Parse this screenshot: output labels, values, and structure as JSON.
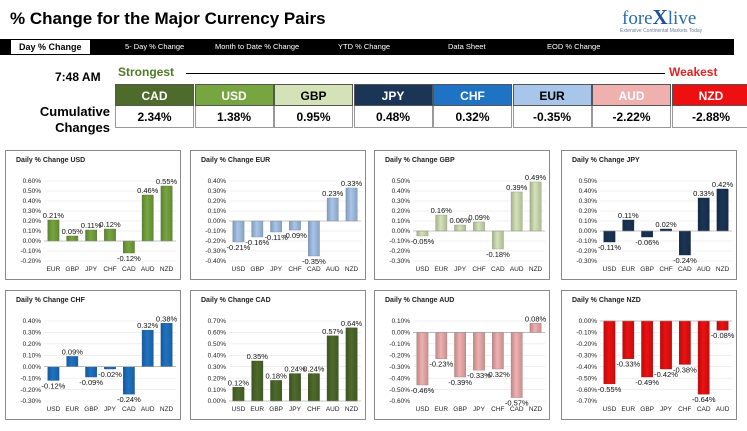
{
  "header": {
    "title": "% Change for the Major Currency Pairs",
    "logo_text_pre": "fore",
    "logo_text_x": "X",
    "logo_text_post": "live",
    "logo_tagline": "Extensive Continental Markets Today"
  },
  "tabs": [
    {
      "label": "Day % Change",
      "active": true
    },
    {
      "label": "5- Day % Change",
      "active": false
    },
    {
      "label": "Month to Date % Change",
      "active": false
    },
    {
      "label": "YTD % Change",
      "active": false
    },
    {
      "label": "Data Sheet",
      "active": false
    },
    {
      "label": "EOD % Change",
      "active": false
    }
  ],
  "summary": {
    "time": "7:48 AM",
    "strongest_label": "Strongest",
    "weakest_label": "Weakest",
    "cumulative_label_line1": "Cumulative",
    "cumulative_label_line2": "Changes",
    "currencies": [
      {
        "code": "CAD",
        "value": "2.34%",
        "color": "#4e6b2b",
        "text": "#ffffff"
      },
      {
        "code": "USD",
        "value": "1.38%",
        "color": "#77a640",
        "text": "#ffffff"
      },
      {
        "code": "GBP",
        "value": "0.95%",
        "color": "#d4e3b7",
        "text": "#000000"
      },
      {
        "code": "JPY",
        "value": "0.48%",
        "color": "#1b3557",
        "text": "#ffffff"
      },
      {
        "code": "CHF",
        "value": "0.32%",
        "color": "#1f73c4",
        "text": "#ffffff"
      },
      {
        "code": "EUR",
        "value": "-0.35%",
        "color": "#a7c6ea",
        "text": "#000000"
      },
      {
        "code": "AUD",
        "value": "-2.22%",
        "color": "#f0b0b0",
        "text": "#ffffff"
      },
      {
        "code": "NZD",
        "value": "-2.88%",
        "color": "#ee1010",
        "text": "#ffffff"
      }
    ]
  },
  "chart_data": [
    {
      "type": "bar",
      "title": "Daily % Change USD",
      "color": "#77a640",
      "categories": [
        "EUR",
        "GBP",
        "JPY",
        "CHF",
        "CAD",
        "AUD",
        "NZD"
      ],
      "values": [
        0.21,
        0.05,
        0.11,
        0.12,
        -0.12,
        0.46,
        0.55
      ],
      "labels": [
        "0.21%",
        "0.05%",
        "0.11%",
        "0.12%",
        "-0.12%",
        "0.46%",
        "0.55%"
      ],
      "ylim": [
        -0.2,
        0.6
      ],
      "ticks": [
        0.6,
        0.5,
        0.4,
        0.3,
        0.2,
        0.1,
        0.0,
        -0.1,
        -0.2
      ],
      "tick_labels": [
        "0.60%",
        "0.50%",
        "0.40%",
        "0.30%",
        "0.20%",
        "0.10%",
        "0.00%",
        "-0.10%",
        "-0.20%"
      ]
    },
    {
      "type": "bar",
      "title": "Daily % Change EUR",
      "color": "#a7c6ea",
      "categories": [
        "USD",
        "GBP",
        "JPY",
        "CHF",
        "CAD",
        "AUD",
        "NZD"
      ],
      "values": [
        -0.21,
        -0.16,
        -0.11,
        -0.09,
        -0.35,
        0.23,
        0.33
      ],
      "labels": [
        "-0.21%",
        "-0.16%",
        "-0.11%",
        "-0.09%",
        "-0.35%",
        "0.23%",
        "0.33%"
      ],
      "ylim": [
        -0.4,
        0.4
      ],
      "ticks": [
        0.4,
        0.3,
        0.2,
        0.1,
        0.0,
        -0.1,
        -0.2,
        -0.3,
        -0.4
      ],
      "tick_labels": [
        "0.40%",
        "0.30%",
        "0.20%",
        "0.10%",
        "0.00%",
        "-0.10%",
        "-0.20%",
        "-0.30%",
        "-0.40%"
      ]
    },
    {
      "type": "bar",
      "title": "Daily % Change GBP",
      "color": "#d4e3b7",
      "categories": [
        "USD",
        "EUR",
        "JPY",
        "CHF",
        "CAD",
        "AUD",
        "NZD"
      ],
      "values": [
        -0.05,
        0.16,
        0.06,
        0.09,
        -0.18,
        0.39,
        0.49
      ],
      "labels": [
        "-0.05%",
        "0.16%",
        "0.06%",
        "0.09%",
        "-0.18%",
        "0.39%",
        "0.49%"
      ],
      "ylim": [
        -0.3,
        0.5
      ],
      "ticks": [
        0.5,
        0.4,
        0.3,
        0.2,
        0.1,
        0.0,
        -0.1,
        -0.2,
        -0.3
      ],
      "tick_labels": [
        "0.50%",
        "0.40%",
        "0.30%",
        "0.20%",
        "0.10%",
        "0.00%",
        "-0.10%",
        "-0.20%",
        "-0.30%"
      ]
    },
    {
      "type": "bar",
      "title": "Daily % Change JPY",
      "color": "#1b3557",
      "categories": [
        "USD",
        "EUR",
        "GBP",
        "CHF",
        "CAD",
        "AUD",
        "NZD"
      ],
      "values": [
        -0.11,
        0.11,
        -0.06,
        0.02,
        -0.24,
        0.33,
        0.42
      ],
      "labels": [
        "-0.11%",
        "0.11%",
        "-0.06%",
        "0.02%",
        "-0.24%",
        "0.33%",
        "0.42%"
      ],
      "ylim": [
        -0.3,
        0.5
      ],
      "ticks": [
        0.5,
        0.4,
        0.3,
        0.2,
        0.1,
        0.0,
        -0.1,
        -0.2,
        -0.3
      ],
      "tick_labels": [
        "0.50%",
        "0.40%",
        "0.30%",
        "0.20%",
        "0.10%",
        "0.00%",
        "-0.10%",
        "-0.20%",
        "-0.30%"
      ]
    },
    {
      "type": "bar",
      "title": "Daily % Change CHF",
      "color": "#1f73c4",
      "categories": [
        "USD",
        "EUR",
        "GBP",
        "JPY",
        "CAD",
        "AUD",
        "NZD"
      ],
      "values": [
        -0.12,
        0.09,
        -0.09,
        -0.02,
        -0.24,
        0.32,
        0.38
      ],
      "labels": [
        "-0.12%",
        "0.09%",
        "-0.09%",
        "-0.02%",
        "-0.24%",
        "0.32%",
        "0.38%"
      ],
      "ylim": [
        -0.3,
        0.4
      ],
      "ticks": [
        0.4,
        0.3,
        0.2,
        0.1,
        0.0,
        -0.1,
        -0.2,
        -0.3
      ],
      "tick_labels": [
        "0.40%",
        "0.30%",
        "0.20%",
        "0.10%",
        "0.00%",
        "-0.10%",
        "-0.20%",
        "-0.30%"
      ]
    },
    {
      "type": "bar",
      "title": "Daily % Change CAD",
      "color": "#4e6b2b",
      "categories": [
        "USD",
        "EUR",
        "GBP",
        "JPY",
        "CHF",
        "AUD",
        "NZD"
      ],
      "values": [
        0.12,
        0.35,
        0.18,
        0.24,
        0.24,
        0.57,
        0.64
      ],
      "labels": [
        "0.12%",
        "0.35%",
        "0.18%",
        "0.24%",
        "0.24%",
        "0.57%",
        "0.64%"
      ],
      "ylim": [
        0.0,
        0.7
      ],
      "ticks": [
        0.7,
        0.6,
        0.5,
        0.4,
        0.3,
        0.2,
        0.1,
        0.0
      ],
      "tick_labels": [
        "0.70%",
        "0.60%",
        "0.50%",
        "0.40%",
        "0.30%",
        "0.20%",
        "0.10%",
        "0.00%"
      ]
    },
    {
      "type": "bar",
      "title": "Daily % Change AUD",
      "color": "#f0b0b0",
      "categories": [
        "USD",
        "EUR",
        "GBP",
        "JPY",
        "CHF",
        "CAD",
        "NZD"
      ],
      "values": [
        -0.46,
        -0.23,
        -0.39,
        -0.33,
        -0.32,
        -0.57,
        0.08
      ],
      "labels": [
        "-0.46%",
        "-0.23%",
        "-0.39%",
        "-0.33%",
        "-0.32%",
        "-0.57%",
        "0.08%"
      ],
      "ylim": [
        -0.6,
        0.1
      ],
      "ticks": [
        0.1,
        0.0,
        -0.1,
        -0.2,
        -0.3,
        -0.4,
        -0.5,
        -0.6
      ],
      "tick_labels": [
        "0.10%",
        "0.00%",
        "-0.10%",
        "-0.20%",
        "-0.30%",
        "-0.40%",
        "-0.50%",
        "-0.60%"
      ]
    },
    {
      "type": "bar",
      "title": "Daily % Change NZD",
      "color": "#ee1010",
      "categories": [
        "USD",
        "EUR",
        "GBP",
        "JPY",
        "CHF",
        "CAD",
        "AUD"
      ],
      "values": [
        -0.55,
        -0.33,
        -0.49,
        -0.42,
        -0.38,
        -0.64,
        -0.08
      ],
      "labels": [
        "-0.55%",
        "-0.33%",
        "-0.49%",
        "-0.42%",
        "-0.38%",
        "-0.64%",
        "-0.08%"
      ],
      "ylim": [
        -0.7,
        0.0
      ],
      "ticks": [
        0.0,
        -0.1,
        -0.2,
        -0.3,
        -0.4,
        -0.5,
        -0.6,
        -0.7
      ],
      "tick_labels": [
        "0.00%",
        "-0.10%",
        "-0.20%",
        "-0.30%",
        "-0.40%",
        "-0.50%",
        "-0.60%",
        "-0.70%"
      ]
    }
  ]
}
